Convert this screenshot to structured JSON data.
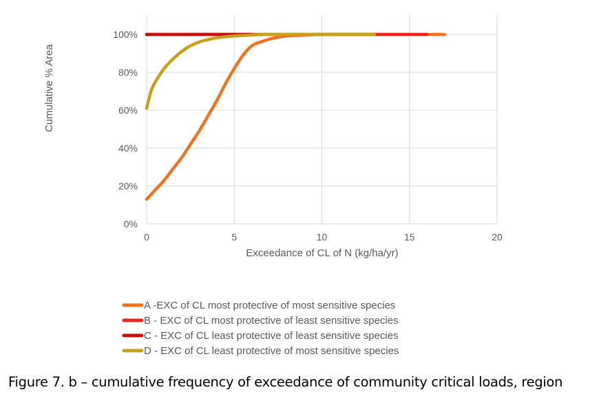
{
  "chart_data": {
    "type": "line",
    "title": "",
    "xlabel": "Exceedance of CL of N (kg/ha/yr)",
    "ylabel": "Cumulative % Area",
    "xlim": [
      0,
      20
    ],
    "ylim": [
      0,
      100
    ],
    "xticks": [
      0,
      5,
      10,
      15,
      20
    ],
    "yticks": [
      0,
      20,
      40,
      60,
      80,
      100
    ],
    "xtick_labels": [
      "0",
      "5",
      "10",
      "15",
      "20"
    ],
    "ytick_labels": [
      "0%",
      "20%",
      "40%",
      "60%",
      "80%",
      "100%"
    ],
    "grid": true,
    "legend_position": "bottom",
    "series": [
      {
        "name": "A -EXC of CL most protective of most sensitive species",
        "color": "#f07420",
        "x": [
          0,
          0.5,
          1,
          1.5,
          2,
          2.5,
          3,
          3.5,
          4,
          4.5,
          5,
          5.5,
          6,
          6.5,
          7,
          7.5,
          8,
          9,
          10,
          12,
          14,
          16,
          17
        ],
        "y": [
          13,
          18,
          23,
          29,
          35,
          42,
          49,
          57,
          65,
          74,
          82,
          89,
          94,
          96,
          97.5,
          98.5,
          99.2,
          99.7,
          100,
          100,
          100,
          100,
          100
        ]
      },
      {
        "name": "B - EXC of CL most protective of least sensitive species",
        "color": "#e8261c",
        "x": [
          0,
          16
        ],
        "y": [
          100,
          100
        ]
      },
      {
        "name": "C - EXC of CL least protective of least sensitive species",
        "color": "#c0130e",
        "x": [
          0,
          6
        ],
        "y": [
          100,
          100
        ]
      },
      {
        "name": "D - EXC of CL least protective of most sensitive species",
        "color": "#c4a21d",
        "x": [
          0,
          0.25,
          0.5,
          1,
          1.5,
          2,
          2.5,
          3,
          3.5,
          4,
          5,
          6,
          7,
          8,
          10,
          13
        ],
        "y": [
          61,
          70,
          75,
          82,
          87,
          91,
          94,
          96,
          97.3,
          98.2,
          99.2,
          99.7,
          100,
          100,
          100,
          100
        ]
      }
    ]
  },
  "caption": "Figure 7. b – cumulative frequency of exceedance of community critical loads, region"
}
